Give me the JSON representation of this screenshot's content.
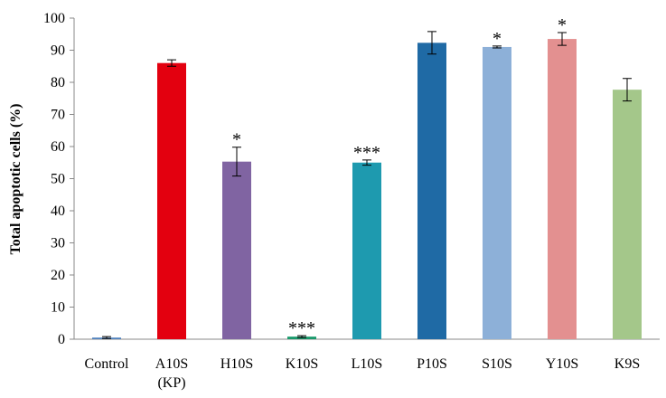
{
  "chart_data": {
    "type": "bar",
    "y_label": "Total apoptotic cells (%)",
    "categories": [
      "Control",
      "A10S\n(KP)",
      "H10S",
      "K10S",
      "L10S",
      "P10S",
      "S10S",
      "Y10S",
      "K9S"
    ],
    "values": [
      0.5,
      86,
      55.3,
      0.8,
      55,
      92.3,
      91,
      93.5,
      77.7
    ],
    "errors": [
      0.3,
      1,
      4.5,
      0.3,
      0.8,
      3.5,
      0.3,
      2,
      3.5
    ],
    "colors": [
      "#4f81bd",
      "#e3000f",
      "#8064a2",
      "#1a9a6c",
      "#1e9aaf",
      "#1f6aa5",
      "#8db0d8",
      "#e39090",
      "#a4c78a"
    ],
    "significance": [
      null,
      null,
      "*",
      "***",
      "***",
      null,
      "*",
      "*",
      null
    ],
    "ylim": [
      0,
      100
    ],
    "yticks": [
      0,
      10,
      20,
      30,
      40,
      50,
      60,
      70,
      80,
      90,
      100
    ],
    "grid": false
  }
}
